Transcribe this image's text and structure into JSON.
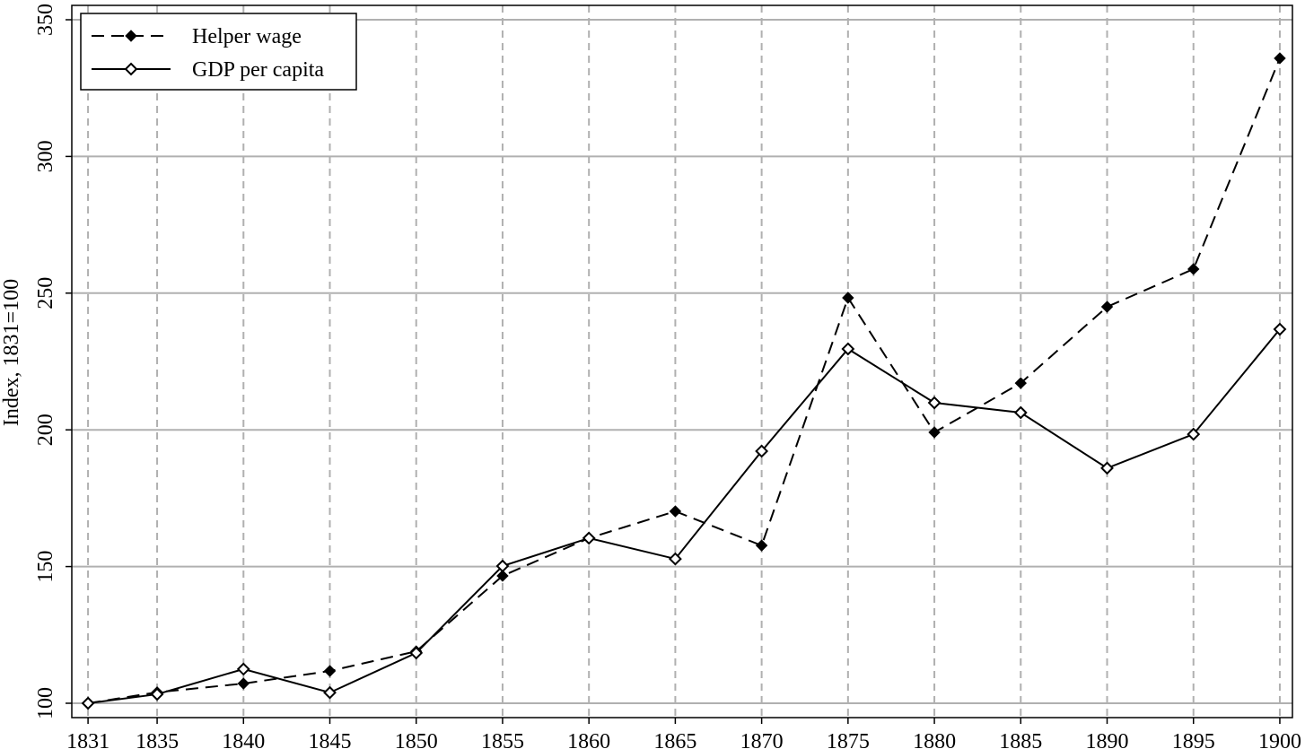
{
  "chart_data": {
    "type": "line",
    "y_label": "Index, 1831=100",
    "x": [
      1831,
      1835,
      1840,
      1845,
      1850,
      1855,
      1860,
      1865,
      1870,
      1875,
      1880,
      1885,
      1890,
      1895,
      1900
    ],
    "series": [
      {
        "name": "Helper wage",
        "color": "#000000",
        "dash": true,
        "marker": "filled-diamond",
        "values": [
          100,
          104,
          107.2,
          111.8,
          119,
          146.6,
          160.4,
          170.2,
          157.7,
          248.3,
          199.1,
          217.1,
          245,
          258.8,
          335.9
        ]
      },
      {
        "name": "GDP per capita",
        "color": "#000000",
        "dash": false,
        "marker": "open-diamond",
        "values": [
          100,
          103.3,
          112.5,
          103.9,
          118.4,
          150.2,
          160.4,
          152.8,
          192.2,
          229.6,
          209.9,
          206.3,
          186,
          198.4,
          236.8
        ]
      }
    ],
    "xlim": [
      1830.06,
      1900.73
    ],
    "xticks": [
      1831,
      1835,
      1840,
      1845,
      1850,
      1855,
      1860,
      1865,
      1870,
      1875,
      1880,
      1885,
      1890,
      1895,
      1900
    ],
    "ylim": [
      94.75,
      355.25
    ],
    "yticks": [
      100,
      150,
      200,
      250,
      300,
      350
    ],
    "grid": true,
    "legend": "upper-left"
  }
}
